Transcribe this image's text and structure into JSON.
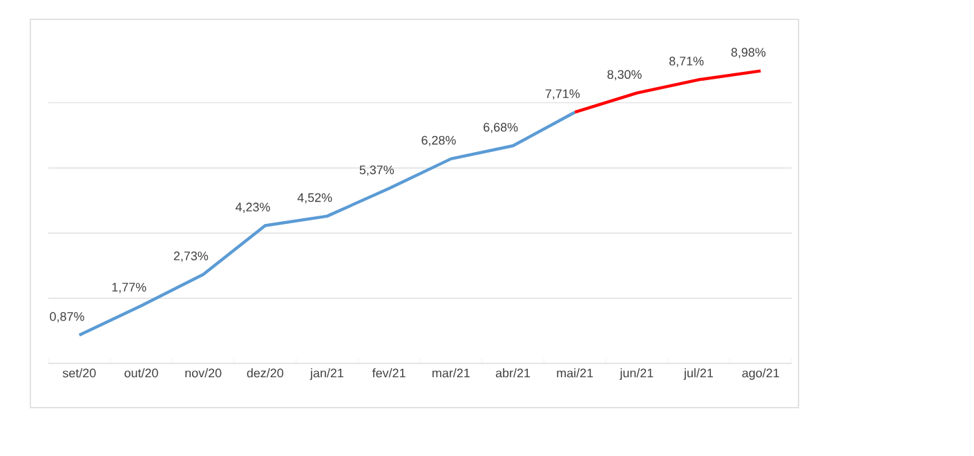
{
  "chart_data": {
    "type": "line",
    "categories": [
      "set/20",
      "out/20",
      "nov/20",
      "dez/20",
      "jan/21",
      "fev/21",
      "mar/21",
      "abr/21",
      "mai/21",
      "jun/21",
      "jul/21",
      "ago/21"
    ],
    "series": [
      {
        "color": "#5b9bd5",
        "values": [
          0.87,
          1.77,
          2.73,
          4.23,
          4.52,
          5.37,
          6.28,
          6.68,
          7.71,
          null,
          null,
          null
        ],
        "value_labels": [
          "0,87%",
          "1,77%",
          "2,73%",
          "4,23%",
          "4,52%",
          "5,37%",
          "6,28%",
          "6,68%",
          "7,71%",
          null,
          null,
          null
        ]
      },
      {
        "color": "#ff0000",
        "values": [
          null,
          null,
          null,
          null,
          null,
          null,
          null,
          null,
          7.71,
          8.3,
          8.71,
          8.98
        ],
        "value_labels": [
          null,
          null,
          null,
          null,
          null,
          null,
          null,
          null,
          null,
          "8,30%",
          "8,71%",
          "8,98%"
        ]
      }
    ],
    "grid": "y",
    "tick_labels": "x",
    "marker": "none",
    "line_style": "solid"
  }
}
